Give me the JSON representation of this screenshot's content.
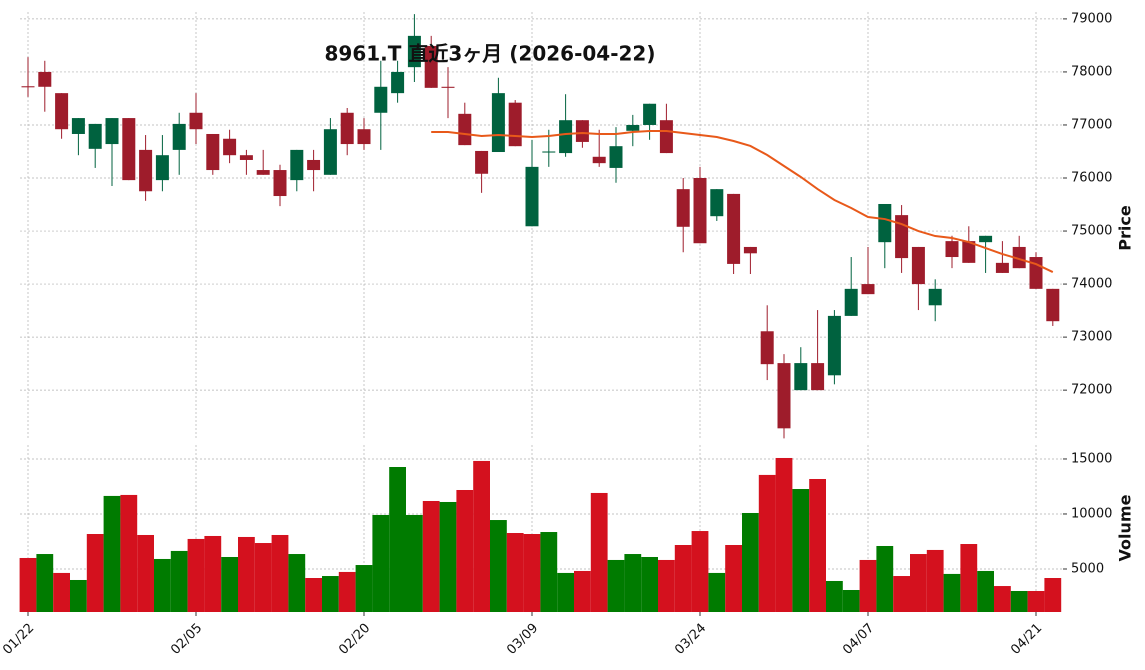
{
  "chart_data": {
    "type": "candlestick",
    "title": "8961.T 直近3ヶ月 (2026-04-22)",
    "y_label": "Price",
    "categories": [
      "01/22",
      null,
      null,
      null,
      null,
      null,
      null,
      null,
      null,
      null,
      "02/05",
      null,
      null,
      null,
      null,
      null,
      null,
      null,
      null,
      null,
      "02/20",
      null,
      null,
      null,
      null,
      null,
      null,
      null,
      null,
      null,
      "03/09",
      null,
      null,
      null,
      null,
      null,
      null,
      null,
      null,
      null,
      "03/24",
      null,
      null,
      null,
      null,
      null,
      null,
      null,
      null,
      null,
      "04/07",
      null,
      null,
      null,
      null,
      null,
      null,
      null,
      null,
      null,
      "04/21",
      null
    ],
    "open": [
      77730,
      78000,
      77600,
      76830,
      76550,
      76640,
      77130,
      76530,
      75960,
      76530,
      77230,
      76830,
      76740,
      76430,
      76150,
      76150,
      75960,
      76340,
      76060,
      77230,
      76920,
      77230,
      77600,
      78090,
      78490,
      77720,
      77210,
      76510,
      76490,
      77420,
      75090,
      76480,
      76470,
      77090,
      76400,
      76190,
      76890,
      77000,
      77090,
      75790,
      76000,
      75280,
      75700,
      74700,
      73110,
      72510,
      72000,
      72510,
      72280,
      73400,
      74000,
      74790,
      75300,
      74700,
      73600,
      74810,
      74810,
      74790,
      74400,
      74700,
      74510,
      73910
    ],
    "high": [
      78280,
      78210,
      77600,
      77130,
      77020,
      77130,
      77130,
      76810,
      76810,
      77230,
      77600,
      76830,
      76910,
      76530,
      76530,
      76250,
      76530,
      76530,
      77130,
      77320,
      77130,
      78210,
      78210,
      79090,
      78680,
      78090,
      77420,
      76510,
      77890,
      77470,
      76720,
      76910,
      77580,
      77090,
      76910,
      76960,
      77190,
      77400,
      77400,
      76000,
      76210,
      75790,
      75700,
      74700,
      73600,
      72680,
      72810,
      73510,
      73510,
      74510,
      74700,
      75510,
      75490,
      74700,
      74090,
      74910,
      75090,
      74910,
      74810,
      74910,
      74600,
      73910
    ],
    "low": [
      77530,
      77250,
      76740,
      76430,
      76190,
      75850,
      75960,
      75570,
      75750,
      76060,
      76640,
      76060,
      76280,
      76060,
      76060,
      75470,
      75750,
      75750,
      76060,
      76430,
      76530,
      76530,
      77420,
      77810,
      77700,
      77130,
      76620,
      75720,
      76490,
      76600,
      75090,
      76210,
      76400,
      76570,
      76210,
      75910,
      76600,
      76720,
      76470,
      74600,
      74770,
      75190,
      74190,
      74190,
      72190,
      71090,
      72000,
      72000,
      72110,
      73400,
      73810,
      74300,
      74210,
      73510,
      73300,
      74300,
      74400,
      74210,
      74210,
      74300,
      73910,
      73210
    ],
    "close": [
      77710,
      77720,
      76920,
      77130,
      77020,
      77130,
      75960,
      75750,
      76430,
      77020,
      76920,
      76150,
      76430,
      76340,
      76060,
      75660,
      76530,
      76150,
      76920,
      76640,
      76640,
      77720,
      78000,
      78680,
      77700,
      77700,
      76620,
      76080,
      77600,
      76600,
      76210,
      76500,
      77090,
      76680,
      76280,
      76600,
      77000,
      77400,
      76470,
      75080,
      74770,
      75790,
      74380,
      74580,
      72490,
      71280,
      72510,
      72000,
      73400,
      73910,
      73810,
      75510,
      74490,
      74000,
      73910,
      74510,
      74400,
      74910,
      74210,
      74300,
      73910,
      73300
    ],
    "up_color": "#00623f",
    "down_color": "#9e1c2b",
    "ylim": [
      71060,
      79130
    ],
    "yticks": [
      72000,
      73000,
      74000,
      75000,
      76000,
      77000,
      78000,
      79000
    ],
    "grid": true,
    "moving_average": {
      "color": "#e8591a",
      "values": [
        null,
        null,
        null,
        null,
        null,
        null,
        null,
        null,
        null,
        null,
        null,
        null,
        null,
        null,
        null,
        null,
        null,
        null,
        null,
        null,
        null,
        null,
        null,
        null,
        76868,
        76868,
        76830,
        76792,
        76811,
        76792,
        76773,
        76792,
        76830,
        76849,
        76830,
        76830,
        76868,
        76887,
        76887,
        76849,
        76811,
        76773,
        76698,
        76604,
        76434,
        76226,
        76019,
        75792,
        75585,
        75434,
        75264,
        75226,
        75132,
        75000,
        74906,
        74868,
        74792,
        74679,
        74566,
        74472,
        74377,
        74226
      ]
    },
    "volume": {
      "y_label": "Volume",
      "up_color": "#007b00",
      "down_color": "#d4111e",
      "values": [
        6000,
        6360,
        4640,
        4000,
        8180,
        11640,
        11730,
        8090,
        5910,
        6640,
        7730,
        8000,
        6090,
        7910,
        7360,
        8090,
        6360,
        4180,
        4360,
        4730,
        5360,
        9910,
        14270,
        9910,
        11180,
        11090,
        12180,
        14820,
        9450,
        8270,
        8180,
        8360,
        4640,
        4820,
        11910,
        5820,
        6360,
        6090,
        5820,
        7180,
        8450,
        4640,
        7180,
        10090,
        13550,
        15090,
        12270,
        13180,
        3910,
        3090,
        5820,
        7090,
        4360,
        6360,
        6730,
        4550,
        7270,
        4820,
        3450,
        3000,
        3000,
        4180
      ],
      "ylim": [
        1090,
        16270
      ],
      "yticks": [
        5000,
        10000,
        15000
      ]
    }
  }
}
